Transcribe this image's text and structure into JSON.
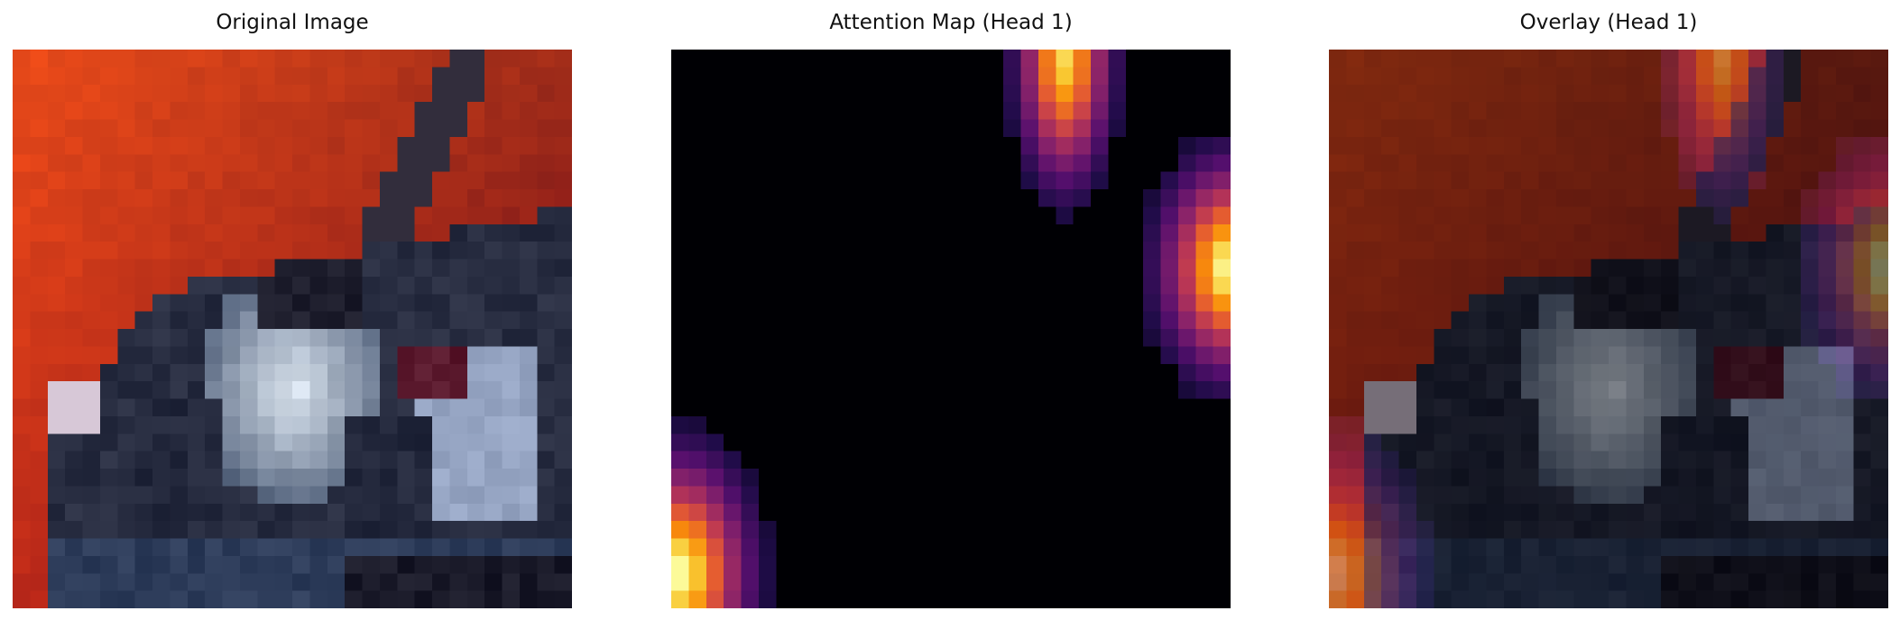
{
  "panels": [
    {
      "title": "Original Image",
      "kind": "original"
    },
    {
      "title": "Attention Map (Head 1)",
      "kind": "attention",
      "colormap": "inferno"
    },
    {
      "title": "Overlay (Head 1)",
      "kind": "overlay"
    }
  ]
}
